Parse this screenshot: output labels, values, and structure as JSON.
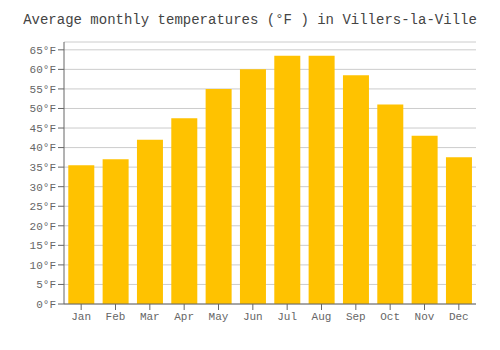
{
  "chart_data": {
    "type": "bar",
    "title": "Average monthly temperatures (°F ) in Villers-la-Ville",
    "categories": [
      "Jan",
      "Feb",
      "Mar",
      "Apr",
      "May",
      "Jun",
      "Jul",
      "Aug",
      "Sep",
      "Oct",
      "Nov",
      "Dec"
    ],
    "values": [
      35.5,
      37,
      42,
      47.5,
      55,
      60,
      63.5,
      63.5,
      58.5,
      51,
      43,
      37.5
    ],
    "color": "#FFC200",
    "ylim": [
      0,
      67
    ],
    "yticks": [
      {
        "value": 0,
        "label": "0°F"
      },
      {
        "value": 5,
        "label": "5°F"
      },
      {
        "value": 10,
        "label": "10°F"
      },
      {
        "value": 15,
        "label": "15°F"
      },
      {
        "value": 20,
        "label": "20°F"
      },
      {
        "value": 25,
        "label": "25°F"
      },
      {
        "value": 30,
        "label": "30°F"
      },
      {
        "value": 35,
        "label": "35°F"
      },
      {
        "value": 40,
        "label": "40°F"
      },
      {
        "value": 45,
        "label": "45°F"
      },
      {
        "value": 50,
        "label": "50°F"
      },
      {
        "value": 55,
        "label": "55°F"
      },
      {
        "value": 60,
        "label": "60°F"
      },
      {
        "value": 65,
        "label": "65°F"
      }
    ],
    "grid": true
  }
}
